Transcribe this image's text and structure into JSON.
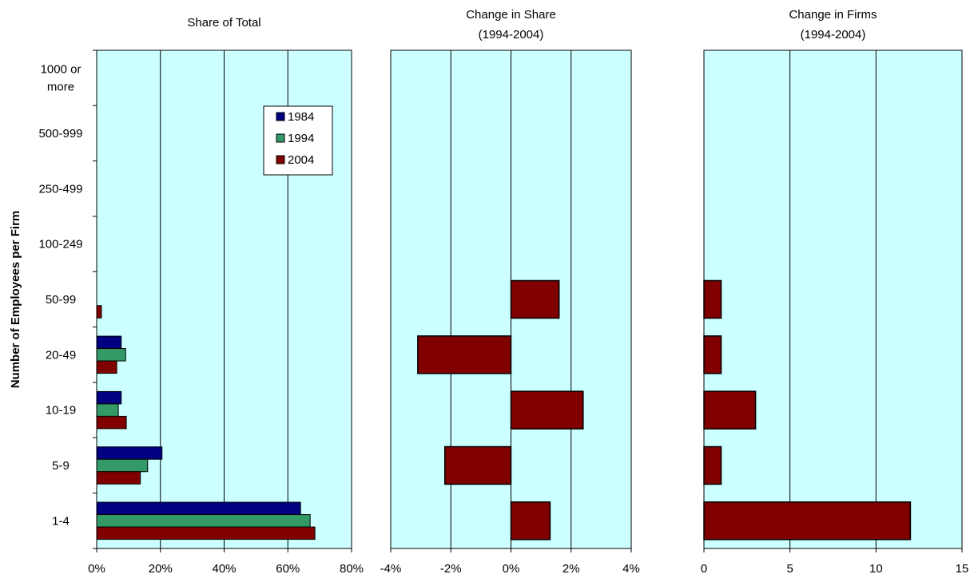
{
  "figure": {
    "ylabel": "Number of Employees per Firm",
    "categories": [
      "1-4",
      "5-9",
      "10-19",
      "20-49",
      "50-99",
      "100-249",
      "250-499",
      "500-999",
      "1000 or more"
    ],
    "category_lines": [
      [
        "1-4"
      ],
      [
        "5-9"
      ],
      [
        "10-19"
      ],
      [
        "20-49"
      ],
      [
        "50-99"
      ],
      [
        "100-249"
      ],
      [
        "250-499"
      ],
      [
        "500-999"
      ],
      [
        "1000 or",
        "more"
      ]
    ],
    "plot_bg": "#ccffff",
    "bar_border": "#000000",
    "legend": [
      {
        "label": "1984",
        "color": "#000080"
      },
      {
        "label": "1994",
        "color": "#339966"
      },
      {
        "label": "2004",
        "color": "#800000"
      }
    ]
  },
  "chart_data": [
    {
      "type": "bar",
      "orientation": "horizontal",
      "title": [
        "Share of Total"
      ],
      "categories": [
        "1-4",
        "5-9",
        "10-19",
        "20-49",
        "50-99",
        "100-249",
        "250-499",
        "500-999",
        "1000 or more"
      ],
      "series": [
        {
          "name": "1984",
          "color": "#000080",
          "values": [
            64,
            20.5,
            7.7,
            7.7,
            0,
            0,
            0,
            0,
            0
          ]
        },
        {
          "name": "1994",
          "color": "#339966",
          "values": [
            67,
            16,
            6.8,
            9.1,
            0,
            0,
            0,
            0,
            0
          ]
        },
        {
          "name": "2004",
          "color": "#800000",
          "values": [
            68.5,
            13.7,
            9.3,
            6.3,
            1.5,
            0,
            0,
            0,
            0
          ]
        }
      ],
      "xlim": [
        0,
        80
      ],
      "xticks": [
        0,
        20,
        40,
        60,
        80
      ],
      "xtick_labels": [
        "0%",
        "20%",
        "40%",
        "60%",
        "80%"
      ],
      "grid": "vertical",
      "legend_position": "top-right"
    },
    {
      "type": "bar",
      "orientation": "horizontal",
      "title": [
        "Change in Share",
        "(1994-2004)"
      ],
      "categories": [
        "1-4",
        "5-9",
        "10-19",
        "20-49",
        "50-99",
        "100-249",
        "250-499",
        "500-999",
        "1000 or more"
      ],
      "series": [
        {
          "color": "#800000",
          "values": [
            1.3,
            -2.2,
            2.4,
            -3.1,
            1.6,
            0,
            0,
            0,
            0
          ]
        }
      ],
      "xlim": [
        -4,
        4
      ],
      "xticks": [
        -4,
        -2,
        0,
        2,
        4
      ],
      "xtick_labels": [
        "-4%",
        "-2%",
        "0%",
        "2%",
        "4%"
      ],
      "grid": "vertical"
    },
    {
      "type": "bar",
      "orientation": "horizontal",
      "title": [
        "Change in Firms",
        "(1994-2004)"
      ],
      "categories": [
        "1-4",
        "5-9",
        "10-19",
        "20-49",
        "50-99",
        "100-249",
        "250-499",
        "500-999",
        "1000 or more"
      ],
      "series": [
        {
          "color": "#800000",
          "values": [
            12,
            1,
            3,
            1,
            1,
            0,
            0,
            0,
            0
          ]
        }
      ],
      "xlim": [
        0,
        15
      ],
      "xticks": [
        0,
        5,
        10,
        15
      ],
      "xtick_labels": [
        "0",
        "5",
        "10",
        "15"
      ],
      "grid": "vertical"
    }
  ]
}
